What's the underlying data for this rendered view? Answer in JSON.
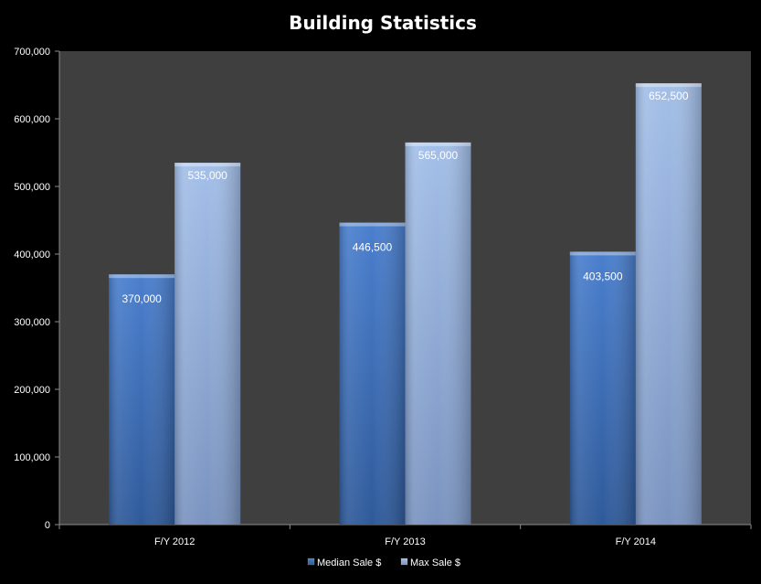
{
  "chart_data": {
    "type": "bar",
    "title": "Building Statistics",
    "categories": [
      "F/Y 2012",
      "F/Y 2013",
      "F/Y 2014"
    ],
    "series": [
      {
        "name": "Median Sale $",
        "values": [
          370000,
          446500,
          403500
        ],
        "labels": [
          "370,000",
          "446,500",
          "403,500"
        ],
        "color": "#3d6fb8"
      },
      {
        "name": "Max Sale $",
        "values": [
          535000,
          565000,
          652500
        ],
        "labels": [
          "535,000",
          "565,000",
          "652,500"
        ],
        "color": "#93b1dd"
      }
    ],
    "ylim": [
      0,
      700000
    ],
    "yticks": [
      "0",
      "100,000",
      "200,000",
      "300,000",
      "400,000",
      "500,000",
      "600,000",
      "700,000"
    ],
    "grid": false,
    "legend_position": "bottom",
    "colors": {
      "background": "#000000",
      "plot_area": "#3f3f3f",
      "text": "#ffffff"
    }
  }
}
